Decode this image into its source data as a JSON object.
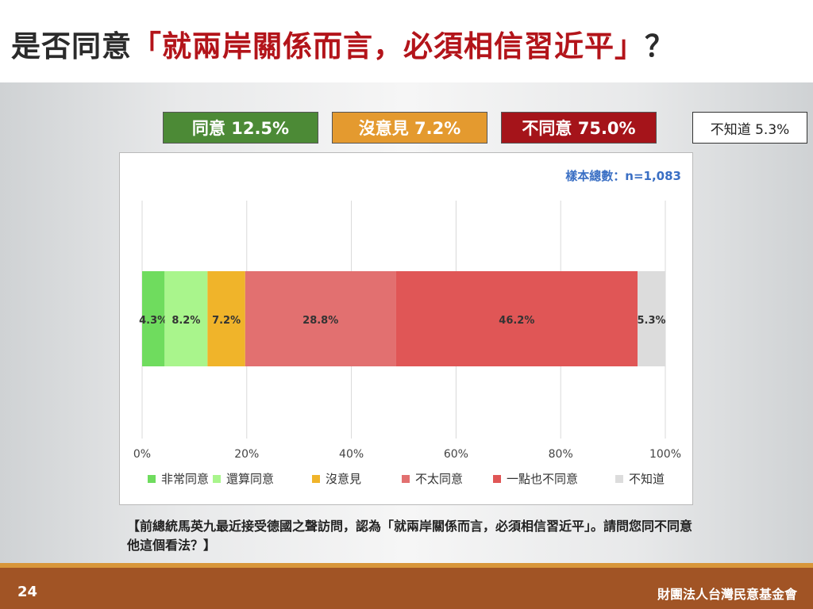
{
  "slide": {
    "title_prefix": "是否同意",
    "title_quote": "「就兩岸關係而言，必須相信習近平」",
    "title_suffix": "？",
    "page_number": "24",
    "organization": "財團法人台灣民意基金會",
    "question": "【前總統馬英九最近接受德國之聲訪問，認為「就兩岸關係而言，必須相信習近平」。請問您同不同意他這個看法？】"
  },
  "summary": {
    "agree": "同意 12.5%",
    "no_opinion": "沒意見 7.2%",
    "disagree": "不同意 75.0%",
    "unknown": "不知道 5.3%"
  },
  "colors": {
    "agree_box": "#4c8a36",
    "no_opinion_box": "#e49a2f",
    "disagree_box": "#a5141a"
  },
  "chart_data": {
    "type": "bar",
    "orientation": "horizontal",
    "stacked": true,
    "sample_note": "樣本總數：n=1,083",
    "xlim": [
      0,
      100
    ],
    "x_ticks": [
      "0%",
      "20%",
      "40%",
      "60%",
      "80%",
      "100%"
    ],
    "grid": true,
    "legend_position": "bottom",
    "series": [
      {
        "name": "非常同意",
        "value": 4.3,
        "label": "4.3%",
        "color": "#6fdc5e"
      },
      {
        "name": "還算同意",
        "value": 8.2,
        "label": "8.2%",
        "color": "#a9f58c"
      },
      {
        "name": "沒意見",
        "value": 7.2,
        "label": "7.2%",
        "color": "#f0b42a"
      },
      {
        "name": "不太同意",
        "value": 28.8,
        "label": "28.8%",
        "color": "#e27070"
      },
      {
        "name": "一點也不同意",
        "value": 46.2,
        "label": "46.2%",
        "color": "#e05656"
      },
      {
        "name": "不知道",
        "value": 5.3,
        "label": "5.3%",
        "color": "#dcdcdc"
      }
    ]
  }
}
